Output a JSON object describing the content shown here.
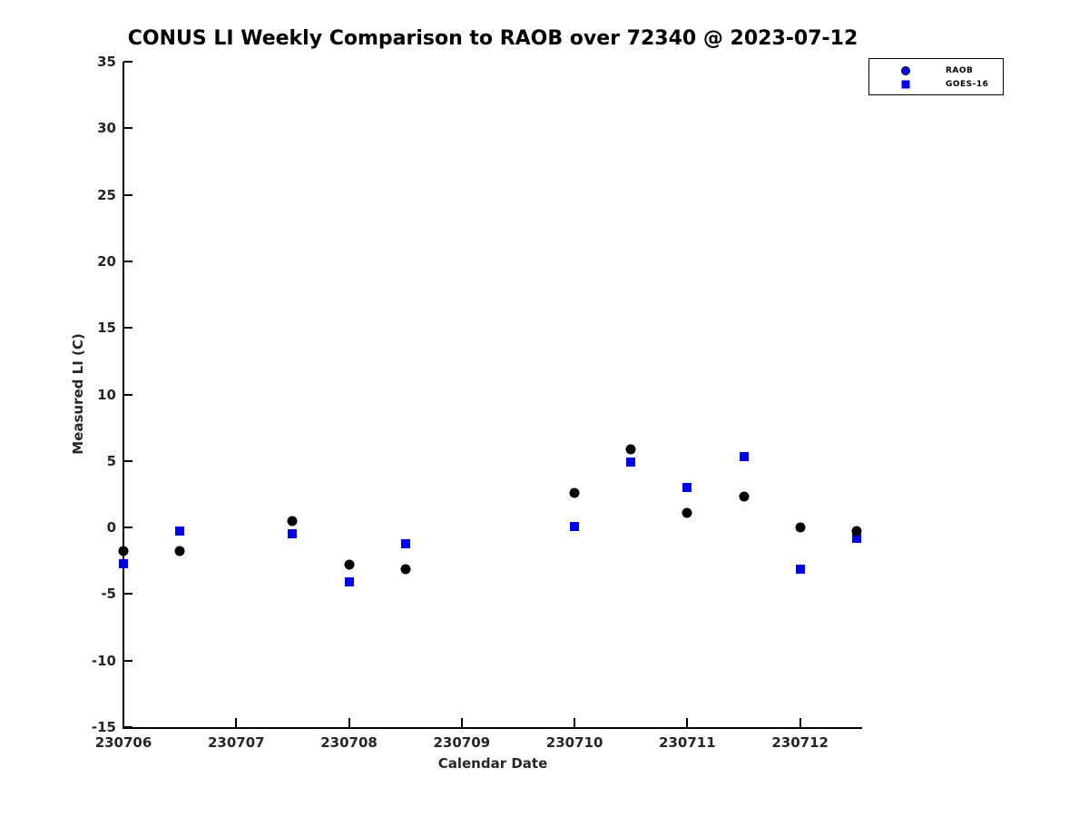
{
  "chart_data": {
    "type": "scatter",
    "title": "CONUS LI Weekly Comparison to RAOB over 72340 @ 2023-07-12",
    "xlabel": "Calendar Date",
    "ylabel": "Measured LI (C)",
    "x_unit": "days since 230706",
    "xlim": [
      0,
      6.55
    ],
    "ylim": [
      -15,
      35
    ],
    "y_ticks": [
      35,
      30,
      25,
      20,
      15,
      10,
      5,
      0,
      -5,
      -10,
      -15
    ],
    "x_ticks": [
      {
        "pos": 0,
        "label": "230706"
      },
      {
        "pos": 1,
        "label": "230707"
      },
      {
        "pos": 2,
        "label": "230708"
      },
      {
        "pos": 3,
        "label": "230709"
      },
      {
        "pos": 4,
        "label": "230710"
      },
      {
        "pos": 5,
        "label": "230711"
      },
      {
        "pos": 6,
        "label": "230712"
      }
    ],
    "grid": false,
    "legend": {
      "position": "top-right"
    },
    "series": [
      {
        "name": "RAOB",
        "marker": "circle",
        "color": "#000000",
        "legend_marker_color": "#0000ee",
        "points": [
          [
            0.0,
            -1.8
          ],
          [
            0.5,
            -1.8
          ],
          [
            1.5,
            0.5
          ],
          [
            2.0,
            -2.8
          ],
          [
            2.5,
            -3.1
          ],
          [
            4.0,
            2.6
          ],
          [
            4.5,
            5.9
          ],
          [
            5.0,
            1.1
          ],
          [
            5.5,
            2.3
          ],
          [
            6.0,
            0.0
          ],
          [
            6.5,
            -0.3
          ]
        ]
      },
      {
        "name": "GOES-16",
        "marker": "square",
        "color": "#0000ee",
        "legend_marker_color": "#0000ee",
        "points": [
          [
            0.0,
            -2.7
          ],
          [
            0.5,
            -0.3
          ],
          [
            1.5,
            -0.5
          ],
          [
            2.0,
            -4.1
          ],
          [
            2.5,
            -1.2
          ],
          [
            4.0,
            0.1
          ],
          [
            4.5,
            4.9
          ],
          [
            5.0,
            3.0
          ],
          [
            5.5,
            5.3
          ],
          [
            6.0,
            -3.1
          ],
          [
            6.5,
            -0.8
          ]
        ]
      }
    ]
  }
}
